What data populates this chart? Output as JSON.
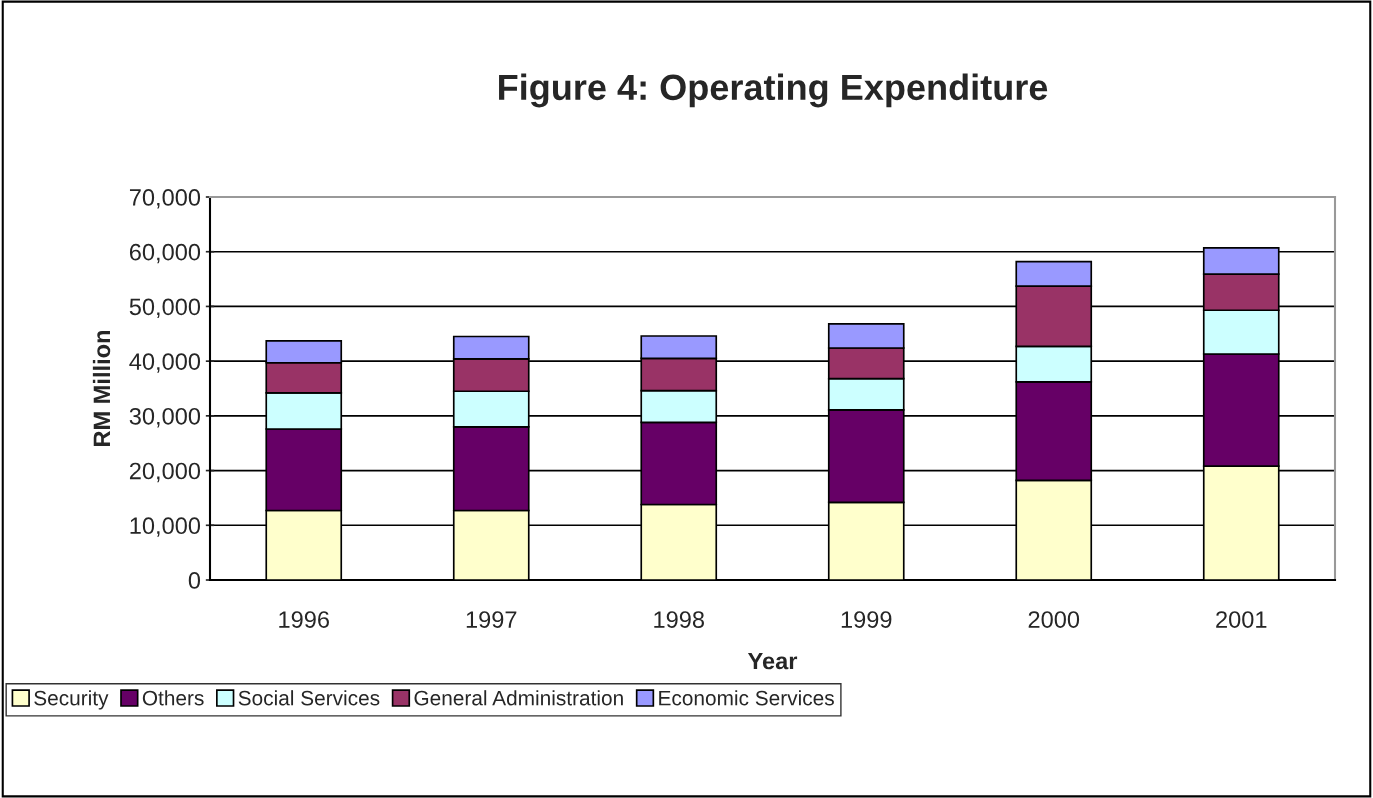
{
  "chart_data": {
    "type": "bar",
    "title": "Figure 4: Operating Expenditure",
    "xlabel": "Year",
    "ylabel": "RM Million",
    "categories": [
      "1996",
      "1997",
      "1998",
      "1999",
      "2000",
      "2001"
    ],
    "stacked": true,
    "series": [
      {
        "name": "Security",
        "color": "#ffffcc",
        "values": [
          12700,
          12700,
          13800,
          14200,
          18200,
          20800
        ]
      },
      {
        "name": "Others",
        "color": "#660066",
        "values": [
          14900,
          15300,
          15000,
          16900,
          18000,
          20500
        ]
      },
      {
        "name": "Social Services",
        "color": "#ccffff",
        "values": [
          6600,
          6500,
          5800,
          5700,
          6500,
          8000
        ]
      },
      {
        "name": "General Administration",
        "color": "#993366",
        "values": [
          5500,
          5900,
          5900,
          5600,
          11000,
          6600
        ]
      },
      {
        "name": "Economic Services",
        "color": "#9999ff",
        "values": [
          4000,
          4100,
          4100,
          4400,
          4500,
          4800
        ]
      }
    ],
    "ylim": [
      0,
      70000
    ],
    "yticks": [
      {
        "value": 0,
        "label": "0"
      },
      {
        "value": 10000,
        "label": "10,000"
      },
      {
        "value": 20000,
        "label": "20,000"
      },
      {
        "value": 30000,
        "label": "30,000"
      },
      {
        "value": 40000,
        "label": "40,000"
      },
      {
        "value": 50000,
        "label": "50,000"
      },
      {
        "value": 60000,
        "label": "60,000"
      },
      {
        "value": 70000,
        "label": "70,000"
      }
    ],
    "grid": "y",
    "legend": "bottom"
  }
}
